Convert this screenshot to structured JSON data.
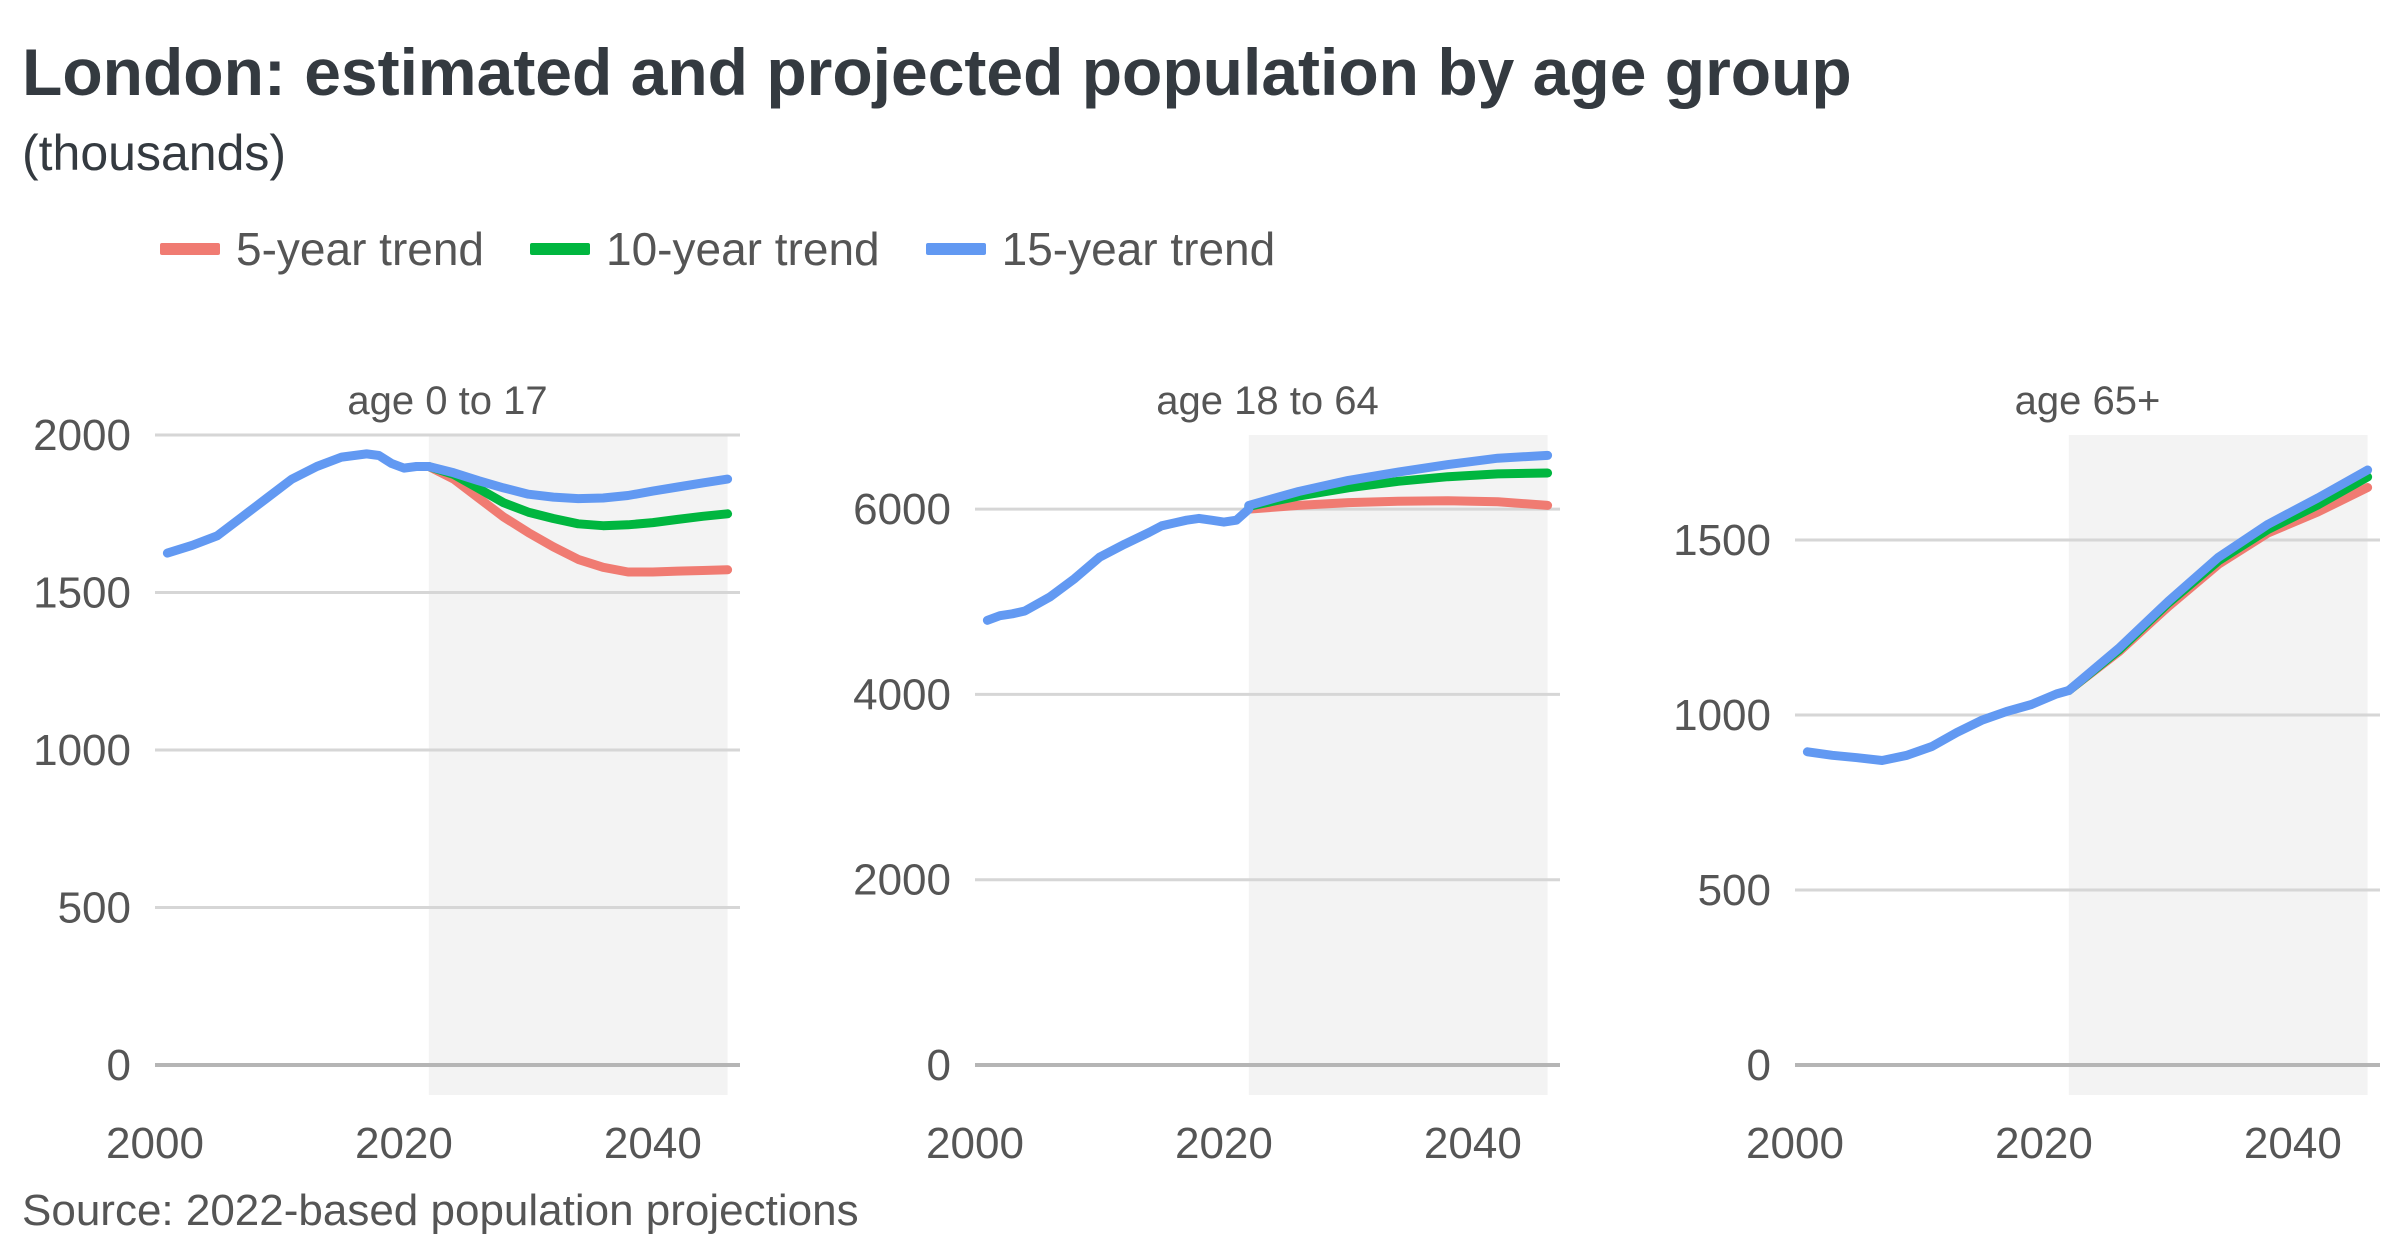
{
  "title": "London: estimated and projected population by age group",
  "subtitle": "(thousands)",
  "source": "Source: 2022-based population projections",
  "legend": [
    {
      "label": "5-year trend",
      "color": "#f07b72"
    },
    {
      "label": "10-year trend",
      "color": "#00b63f"
    },
    {
      "label": "15-year trend",
      "color": "#6299f2"
    }
  ],
  "chart_data": [
    {
      "type": "line",
      "panel_title": "age 0 to 17",
      "xlim": [
        2000,
        2047
      ],
      "ylim": [
        0,
        2000
      ],
      "x_ticks": [
        2000,
        2020,
        2040
      ],
      "y_ticks": [
        0,
        500,
        1000,
        1500,
        2000
      ],
      "projection_start": 2022,
      "projection_end": 2046,
      "common": {
        "x": [
          2001,
          2003,
          2005,
          2007,
          2009,
          2011,
          2013,
          2015,
          2017,
          2018,
          2019,
          2020,
          2021,
          2022
        ],
        "y": [
          1625,
          1650,
          1680,
          1740,
          1800,
          1860,
          1900,
          1930,
          1940,
          1935,
          1910,
          1895,
          1900,
          1900
        ]
      },
      "series": [
        {
          "name": "5-year trend",
          "x": [
            2022,
            2024,
            2026,
            2028,
            2030,
            2032,
            2034,
            2036,
            2038,
            2040,
            2042,
            2044,
            2046
          ],
          "y": [
            1900,
            1860,
            1800,
            1740,
            1690,
            1645,
            1605,
            1580,
            1565,
            1565,
            1568,
            1570,
            1572
          ]
        },
        {
          "name": "10-year trend",
          "x": [
            2022,
            2024,
            2026,
            2028,
            2030,
            2032,
            2034,
            2036,
            2038,
            2040,
            2042,
            2044,
            2046
          ],
          "y": [
            1900,
            1875,
            1830,
            1785,
            1755,
            1735,
            1718,
            1712,
            1715,
            1722,
            1732,
            1742,
            1750
          ]
        },
        {
          "name": "15-year trend",
          "x": [
            2022,
            2024,
            2026,
            2028,
            2030,
            2032,
            2034,
            2036,
            2038,
            2040,
            2042,
            2044,
            2046
          ],
          "y": [
            1900,
            1880,
            1855,
            1832,
            1812,
            1803,
            1798,
            1800,
            1808,
            1822,
            1835,
            1848,
            1860
          ]
        }
      ]
    },
    {
      "type": "line",
      "panel_title": "age 18 to 64",
      "xlim": [
        2000,
        2047
      ],
      "ylim": [
        0,
        6800
      ],
      "x_ticks": [
        2000,
        2020,
        2040
      ],
      "y_ticks": [
        0,
        2000,
        4000,
        6000
      ],
      "projection_start": 2022,
      "projection_end": 2046,
      "common": {
        "x": [
          2001,
          2002,
          2003,
          2004,
          2006,
          2008,
          2010,
          2012,
          2014,
          2015,
          2016,
          2017,
          2018,
          2019,
          2020,
          2021,
          2022
        ],
        "y": [
          4800,
          4850,
          4870,
          4900,
          5050,
          5250,
          5480,
          5620,
          5750,
          5820,
          5850,
          5880,
          5900,
          5880,
          5860,
          5880,
          6000
        ]
      },
      "series": [
        {
          "name": "5-year trend",
          "x": [
            2022,
            2026,
            2030,
            2034,
            2038,
            2042,
            2046
          ],
          "y": [
            6000,
            6040,
            6070,
            6085,
            6090,
            6080,
            6040
          ]
        },
        {
          "name": "10-year trend",
          "x": [
            2022,
            2026,
            2030,
            2034,
            2038,
            2042,
            2046
          ],
          "y": [
            6030,
            6140,
            6230,
            6300,
            6350,
            6380,
            6390
          ]
        },
        {
          "name": "15-year trend",
          "x": [
            2022,
            2026,
            2030,
            2034,
            2038,
            2042,
            2046
          ],
          "y": [
            6040,
            6190,
            6310,
            6400,
            6480,
            6550,
            6580
          ]
        }
      ]
    },
    {
      "type": "line",
      "panel_title": "age 65+",
      "xlim": [
        2000,
        2047
      ],
      "ylim": [
        0,
        1800
      ],
      "x_ticks": [
        2000,
        2020,
        2040
      ],
      "y_ticks": [
        0,
        500,
        1000,
        1500
      ],
      "projection_start": 2022,
      "projection_end": 2046,
      "common": {
        "x": [
          2001,
          2003,
          2005,
          2007,
          2009,
          2011,
          2013,
          2015,
          2017,
          2019,
          2021,
          2022
        ],
        "y": [
          895,
          885,
          878,
          870,
          885,
          910,
          950,
          985,
          1010,
          1030,
          1060,
          1070
        ]
      },
      "series": [
        {
          "name": "5-year trend",
          "x": [
            2022,
            2026,
            2030,
            2034,
            2038,
            2042,
            2046
          ],
          "y": [
            1070,
            1180,
            1310,
            1430,
            1520,
            1580,
            1650
          ]
        },
        {
          "name": "10-year trend",
          "x": [
            2022,
            2026,
            2030,
            2034,
            2038,
            2042,
            2046
          ],
          "y": [
            1070,
            1185,
            1320,
            1440,
            1530,
            1600,
            1680
          ]
        },
        {
          "name": "15-year trend",
          "x": [
            2022,
            2026,
            2030,
            2034,
            2038,
            2042,
            2046
          ],
          "y": [
            1070,
            1190,
            1325,
            1450,
            1545,
            1620,
            1700
          ]
        }
      ]
    }
  ]
}
